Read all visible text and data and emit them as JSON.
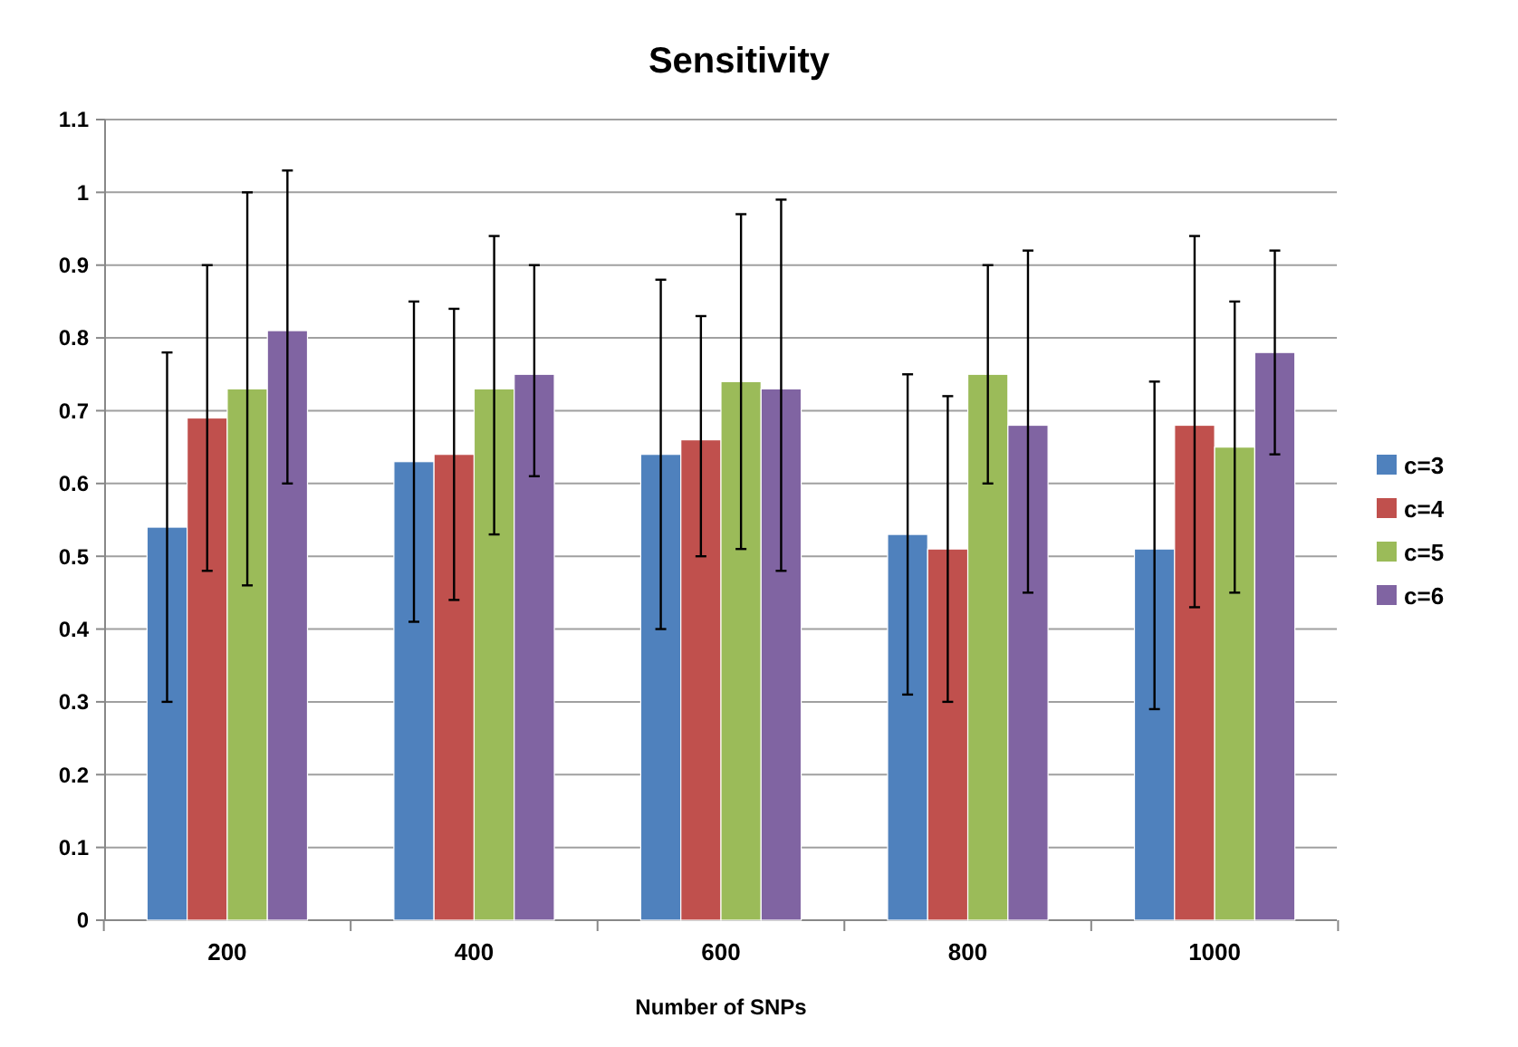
{
  "chart_data": {
    "type": "bar",
    "title": "Sensitivity",
    "xlabel": "Number of SNPs",
    "categories": [
      "200",
      "400",
      "600",
      "800",
      "1000"
    ],
    "series": [
      {
        "name": "c=3",
        "color": "#4f81bd",
        "values": [
          0.54,
          0.63,
          0.64,
          0.53,
          0.51
        ],
        "errors": [
          [
            0.3,
            0.78
          ],
          [
            0.41,
            0.85
          ],
          [
            0.4,
            0.88
          ],
          [
            0.31,
            0.75
          ],
          [
            0.29,
            0.74
          ]
        ]
      },
      {
        "name": "c=4",
        "color": "#c0504d",
        "values": [
          0.69,
          0.64,
          0.66,
          0.51,
          0.68
        ],
        "errors": [
          [
            0.48,
            0.9
          ],
          [
            0.44,
            0.84
          ],
          [
            0.5,
            0.83
          ],
          [
            0.3,
            0.72
          ],
          [
            0.43,
            0.94
          ]
        ]
      },
      {
        "name": "c=5",
        "color": "#9bbb59",
        "values": [
          0.73,
          0.73,
          0.74,
          0.75,
          0.65
        ],
        "errors": [
          [
            0.46,
            1.0
          ],
          [
            0.53,
            0.94
          ],
          [
            0.51,
            0.97
          ],
          [
            0.6,
            0.9
          ],
          [
            0.45,
            0.85
          ]
        ]
      },
      {
        "name": "c=6",
        "color": "#8064a2",
        "values": [
          0.81,
          0.75,
          0.73,
          0.68,
          0.78
        ],
        "errors": [
          [
            0.6,
            1.03
          ],
          [
            0.61,
            0.9
          ],
          [
            0.48,
            0.99
          ],
          [
            0.45,
            0.92
          ],
          [
            0.64,
            0.92
          ]
        ]
      }
    ],
    "ylim": [
      0,
      1.1
    ],
    "yticks": [
      0,
      0.1,
      0.2,
      0.3,
      0.4,
      0.5,
      0.6,
      0.7,
      0.8,
      0.9,
      1,
      1.1
    ],
    "grid": "y",
    "legend": "right"
  }
}
